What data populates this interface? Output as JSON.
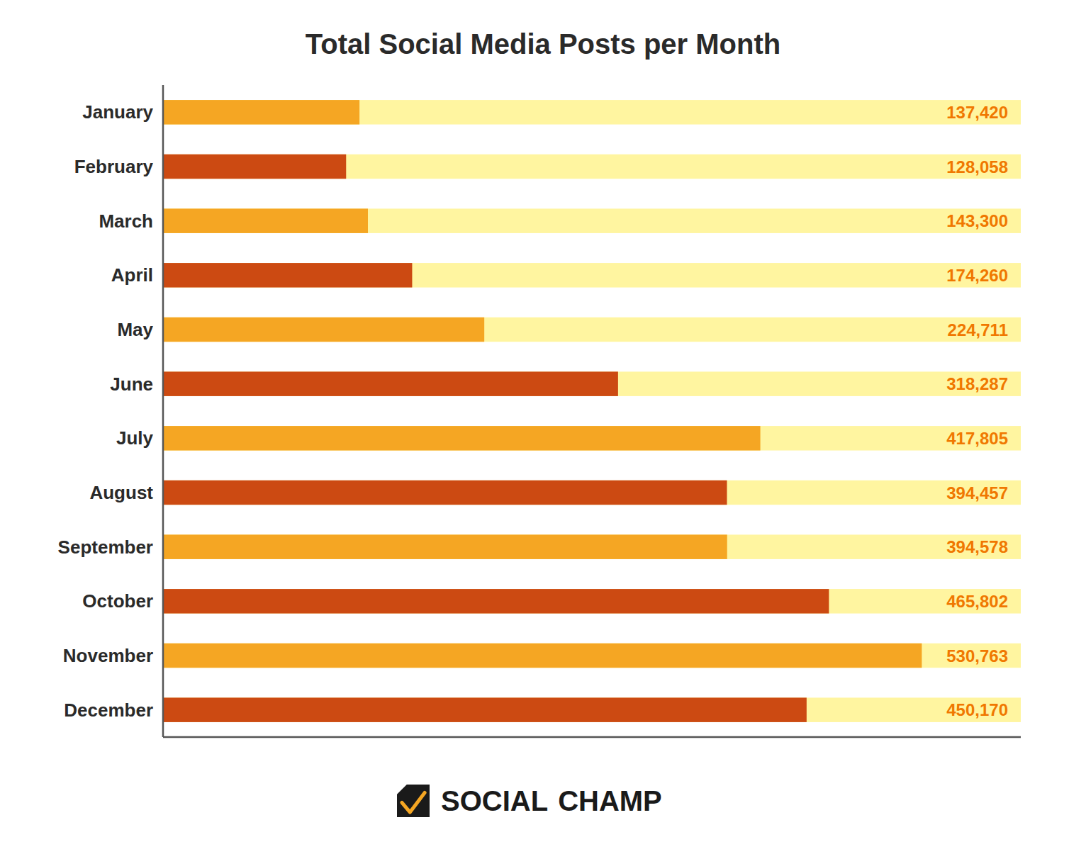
{
  "chart_data": {
    "type": "bar",
    "orientation": "horizontal",
    "title": "Total Social Media Posts per Month",
    "categories": [
      "January",
      "February",
      "March",
      "April",
      "May",
      "June",
      "July",
      "August",
      "September",
      "October",
      "November",
      "December"
    ],
    "values": [
      137420,
      128058,
      143300,
      174260,
      224711,
      318287,
      417805,
      394457,
      394578,
      465802,
      530763,
      450170
    ],
    "value_labels": [
      "137,420",
      "128,058",
      "143,300",
      "174,260",
      "224,711",
      "318,287",
      "417,805",
      "394,457",
      "394,578",
      "465,802",
      "530,763",
      "450,170"
    ],
    "colors": [
      "#F5A623",
      "#CC4A12",
      "#F5A623",
      "#CC4A12",
      "#F5A623",
      "#CC4A12",
      "#F5A623",
      "#CC4A12",
      "#F5A623",
      "#CC4A12",
      "#F5A623",
      "#CC4A12"
    ],
    "xlim": [
      0,
      600000
    ],
    "data_labels": true,
    "tick_labels": "y",
    "grid": false,
    "annotations": [
      "SOCIAL",
      "CHAMP"
    ]
  }
}
